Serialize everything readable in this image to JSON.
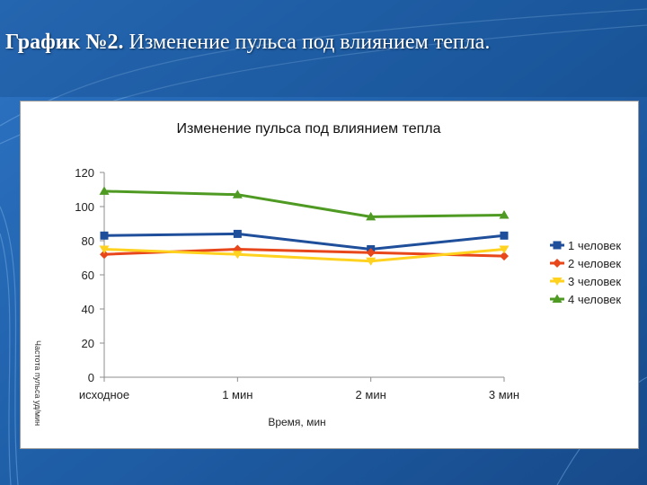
{
  "slide": {
    "title_bold": "График №2.",
    "title_rest": " Изменение пульса под влиянием тепла."
  },
  "colors": {
    "background": "#1f5fa8",
    "series": [
      "#1f4e9a",
      "#e8461b",
      "#ffd21f",
      "#4e9a22"
    ]
  },
  "chart_data": {
    "type": "line",
    "title": "Изменение пульса под влиянием тепла",
    "xlabel": "Время, мин",
    "ylabel": "Частота пульса уд/мин",
    "ylim": [
      0,
      120
    ],
    "yticks": [
      0,
      20,
      40,
      60,
      80,
      100,
      120
    ],
    "categories": [
      "исходное",
      "1 мин",
      "2 мин",
      "3 мин"
    ],
    "grid": false,
    "legend_position": "right",
    "series": [
      {
        "name": "1 человек",
        "marker": "square",
        "values": [
          83,
          84,
          75,
          83
        ]
      },
      {
        "name": "2 человек",
        "marker": "diamond",
        "values": [
          72,
          75,
          73,
          71
        ]
      },
      {
        "name": "3 человек",
        "marker": "triangle-down",
        "values": [
          75,
          72,
          68,
          75
        ]
      },
      {
        "name": "4 человек",
        "marker": "triangle-up",
        "values": [
          109,
          107,
          94,
          95
        ]
      }
    ]
  }
}
